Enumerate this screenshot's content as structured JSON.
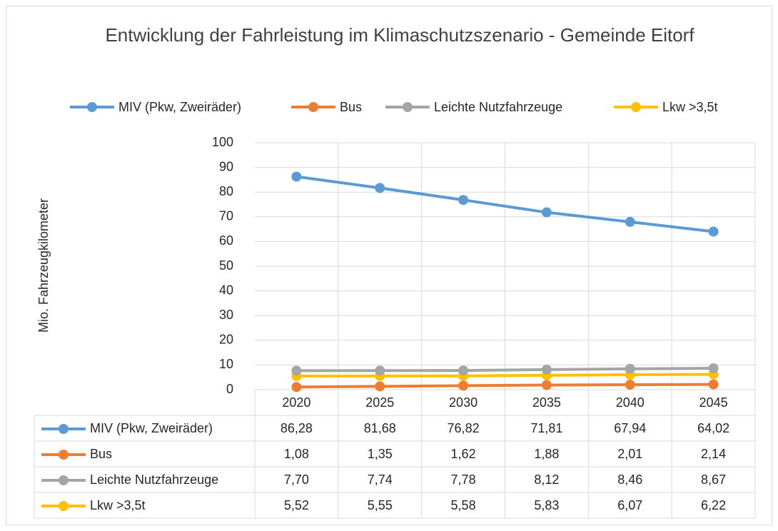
{
  "chart_data": {
    "type": "line",
    "title": "Entwicklung der Fahrleistung im Klimaschutzszenario - Gemeinde Eitorf",
    "y_label": "Mio. Fahrzeugkilometer",
    "categories": [
      "2020",
      "2025",
      "2030",
      "2035",
      "2040",
      "2045"
    ],
    "series": [
      {
        "name": "MIV (Pkw, Zweiräder)",
        "color": "#5b9bd5",
        "values": [
          86.28,
          81.68,
          76.82,
          71.81,
          67.94,
          64.02
        ],
        "value_labels": [
          "86,28",
          "81,68",
          "76,82",
          "71,81",
          "67,94",
          "64,02"
        ]
      },
      {
        "name": "Bus",
        "color": "#ed7d31",
        "values": [
          1.08,
          1.35,
          1.62,
          1.88,
          2.01,
          2.14
        ],
        "value_labels": [
          "1,08",
          "1,35",
          "1,62",
          "1,88",
          "2,01",
          "2,14"
        ]
      },
      {
        "name": "Leichte Nutzfahrzeuge",
        "color": "#a5a5a5",
        "values": [
          7.7,
          7.74,
          7.78,
          8.12,
          8.46,
          8.67
        ],
        "value_labels": [
          "7,70",
          "7,74",
          "7,78",
          "8,12",
          "8,46",
          "8,67"
        ]
      },
      {
        "name": "Lkw >3,5t",
        "color": "#ffc000",
        "values": [
          5.52,
          5.55,
          5.58,
          5.83,
          6.07,
          6.22
        ],
        "value_labels": [
          "5,52",
          "5,55",
          "5,58",
          "5,83",
          "6,07",
          "6,22"
        ]
      }
    ],
    "ylim": [
      0,
      100
    ],
    "yticks": [
      0,
      10,
      20,
      30,
      40,
      50,
      60,
      70,
      80,
      90,
      100
    ],
    "grid": true,
    "legend": "top",
    "data_table": true
  }
}
